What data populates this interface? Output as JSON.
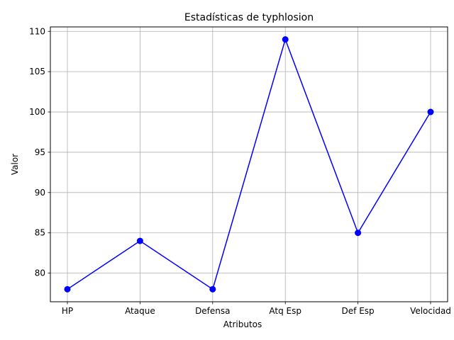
{
  "chart_data": {
    "type": "line",
    "title": "Estadísticas de typhlosion",
    "xlabel": "Atributos",
    "ylabel": "Valor",
    "categories": [
      "HP",
      "Ataque",
      "Defensa",
      "Atq Esp",
      "Def Esp",
      "Velocidad"
    ],
    "series": [
      {
        "values": [
          78,
          84,
          78,
          109,
          85,
          100
        ],
        "color": "#0000ff",
        "marker": "circle"
      }
    ],
    "ylim": [
      76.45,
      110.55
    ],
    "yticks": [
      80,
      85,
      90,
      95,
      100,
      105,
      110
    ],
    "grid": true
  }
}
